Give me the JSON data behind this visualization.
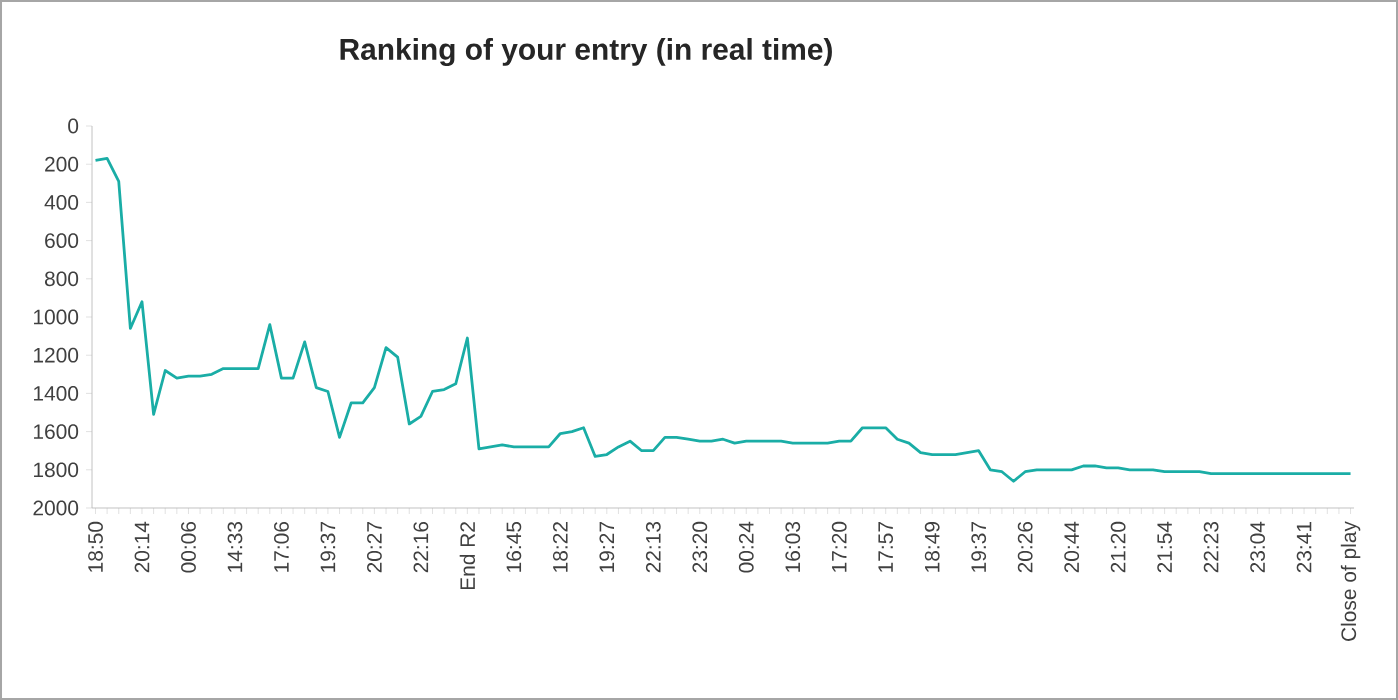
{
  "chart_data": {
    "type": "line",
    "title": "Ranking of your entry (in real time)",
    "categories": [
      "18:50",
      null,
      null,
      null,
      "20:14",
      null,
      null,
      null,
      "00:06",
      null,
      null,
      null,
      "14:33",
      null,
      null,
      null,
      "17:06",
      null,
      null,
      null,
      "19:37",
      null,
      null,
      null,
      "20:27",
      null,
      null,
      null,
      "22:16",
      null,
      null,
      null,
      "End R2",
      null,
      null,
      null,
      "16:45",
      null,
      null,
      null,
      "18:22",
      null,
      null,
      null,
      "19:27",
      null,
      null,
      null,
      "22:13",
      null,
      null,
      null,
      "23:20",
      null,
      null,
      null,
      "00:24",
      null,
      null,
      null,
      "16:03",
      null,
      null,
      null,
      "17:20",
      null,
      null,
      null,
      "17:57",
      null,
      null,
      null,
      "18:49",
      null,
      null,
      null,
      "19:37",
      null,
      null,
      null,
      "20:26",
      null,
      null,
      null,
      "20:44",
      null,
      null,
      null,
      "21:20",
      null,
      null,
      null,
      "21:54",
      null,
      null,
      null,
      "22:23",
      null,
      null,
      null,
      "23:04",
      null,
      null,
      null,
      "23:41",
      null,
      null,
      null,
      "Close of play"
    ],
    "series": [
      {
        "color": "#1aada6",
        "values": [
          180,
          170,
          290,
          1060,
          920,
          1510,
          1280,
          1320,
          1310,
          1310,
          1300,
          1270,
          1270,
          1270,
          1270,
          1040,
          1320,
          1320,
          1130,
          1370,
          1390,
          1630,
          1450,
          1450,
          1370,
          1160,
          1210,
          1560,
          1520,
          1390,
          1380,
          1350,
          1110,
          1690,
          1680,
          1670,
          1680,
          1680,
          1680,
          1680,
          1610,
          1600,
          1580,
          1730,
          1720,
          1680,
          1650,
          1700,
          1700,
          1630,
          1630,
          1640,
          1650,
          1650,
          1640,
          1660,
          1650,
          1650,
          1650,
          1650,
          1660,
          1660,
          1660,
          1660,
          1650,
          1650,
          1580,
          1580,
          1580,
          1640,
          1660,
          1710,
          1720,
          1720,
          1720,
          1710,
          1700,
          1800,
          1810,
          1860,
          1810,
          1800,
          1800,
          1800,
          1800,
          1780,
          1780,
          1790,
          1790,
          1800,
          1800,
          1800,
          1810,
          1810,
          1810,
          1810,
          1820,
          1820,
          1820,
          1820,
          1820,
          1820,
          1820,
          1820,
          1820,
          1820,
          1820,
          1820,
          1820
        ]
      }
    ],
    "ylim": [
      2000,
      0
    ],
    "yticks": [
      0,
      200,
      400,
      600,
      800,
      1000,
      1200,
      1400,
      1600,
      1800,
      2000
    ]
  }
}
